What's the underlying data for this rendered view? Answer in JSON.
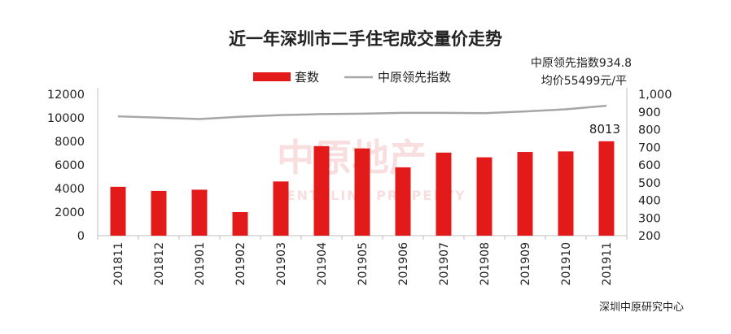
{
  "chart_data": {
    "type": "bar+line",
    "title": "近一年深圳市二手住宅成交量价走势",
    "categories": [
      "201811",
      "201812",
      "201901",
      "201902",
      "201903",
      "201904",
      "201905",
      "201906",
      "201907",
      "201908",
      "201909",
      "201910",
      "201911"
    ],
    "series": [
      {
        "name": "套数",
        "type": "bar",
        "axis": "left",
        "color": "#e31a1a",
        "values": [
          4150,
          3800,
          3900,
          2000,
          4600,
          7600,
          7400,
          5800,
          7050,
          6650,
          7100,
          7150,
          8013
        ]
      },
      {
        "name": "中原领先指数",
        "type": "line",
        "axis": "right",
        "color": "#a6a6a6",
        "values": [
          875,
          868,
          860,
          873,
          882,
          888,
          890,
          895,
          895,
          893,
          903,
          915,
          934.8
        ]
      }
    ],
    "y_left": {
      "min": 0,
      "max": 12000,
      "ticks": [
        "0",
        "2000",
        "4000",
        "6000",
        "8000",
        "10000",
        "12000"
      ]
    },
    "y_right": {
      "min": 200,
      "max": 1000,
      "ticks": [
        "200",
        "300",
        "400",
        "500",
        "600",
        "700",
        "800",
        "900",
        "1,000"
      ]
    },
    "annotations": {
      "index_label": "中原领先指数934.8",
      "price_label": "均价55499元/平",
      "last_bar_label": "8013"
    },
    "legend_position": "top-center",
    "grid": false
  },
  "watermark": {
    "cn": "中原地产",
    "en": "CENTALINE PROPERTY"
  },
  "source": "深圳中原研究中心"
}
